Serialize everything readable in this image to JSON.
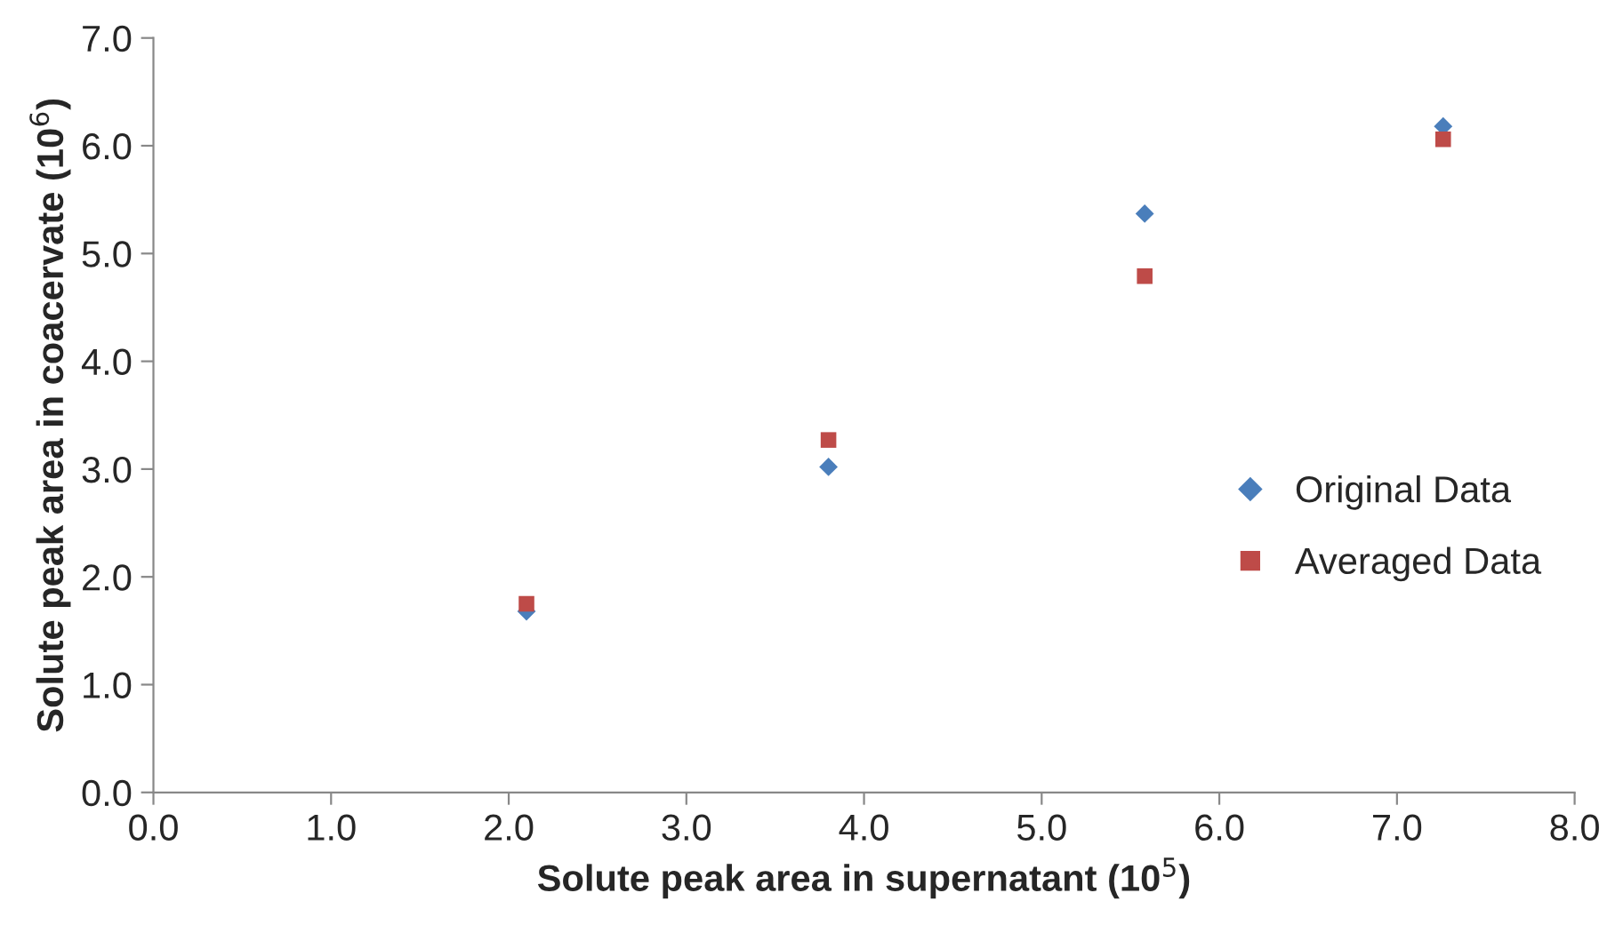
{
  "chart_data": {
    "type": "scatter",
    "xlabel": "Solute peak area in supernatant (10$^{5}$)",
    "ylabel": "Solute peak area in coacervate (10$^{6}$)",
    "x": [
      2.1,
      3.8,
      5.58,
      7.26
    ],
    "series": [
      {
        "name": "Original Data",
        "color": "#4a7ebb",
        "marker": "diamond",
        "values": [
          1.68,
          3.02,
          5.37,
          6.18
        ]
      },
      {
        "name": "Averaged Data",
        "color": "#be4b48",
        "marker": "square",
        "values": [
          1.75,
          3.27,
          4.79,
          6.06
        ]
      }
    ],
    "xlim": [
      0,
      8
    ],
    "ylim": [
      0,
      7
    ],
    "xticks": [
      {
        "value": 0,
        "label": "0.0"
      },
      {
        "value": 1,
        "label": "1.0"
      },
      {
        "value": 2,
        "label": "2.0"
      },
      {
        "value": 3,
        "label": "3.0"
      },
      {
        "value": 4,
        "label": "4.0"
      },
      {
        "value": 5,
        "label": "5.0"
      },
      {
        "value": 6,
        "label": "6.0"
      },
      {
        "value": 7,
        "label": "7.0"
      },
      {
        "value": 8,
        "label": "8.0"
      }
    ],
    "yticks": [
      {
        "value": 0,
        "label": "0.0"
      },
      {
        "value": 1,
        "label": "1.0"
      },
      {
        "value": 2,
        "label": "2.0"
      },
      {
        "value": 3,
        "label": "3.0"
      },
      {
        "value": 4,
        "label": "4.0"
      },
      {
        "value": 5,
        "label": "5.0"
      },
      {
        "value": 6,
        "label": "6.0"
      },
      {
        "value": 7,
        "label": "7.0"
      }
    ],
    "grid": false,
    "legend": "center right"
  }
}
